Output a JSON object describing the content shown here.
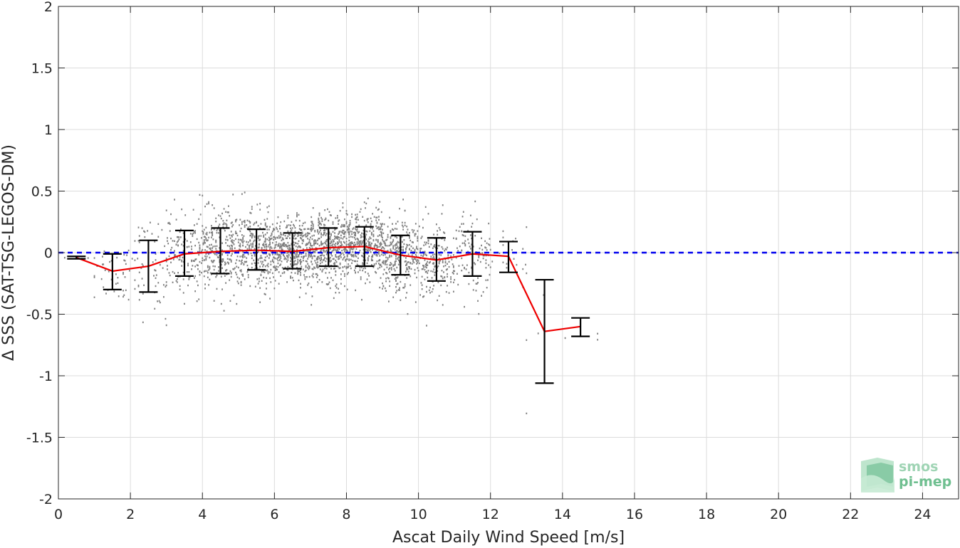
{
  "chart_data": {
    "type": "scatter",
    "xlabel": "Ascat Daily Wind Speed [m/s]",
    "ylabel": "Δ SSS (SAT-TSG-LEGOS-DM)",
    "xlim": [
      0,
      25
    ],
    "ylim": [
      -2,
      2
    ],
    "x_ticks": [
      0,
      2,
      4,
      6,
      8,
      10,
      12,
      14,
      16,
      18,
      20,
      22,
      24
    ],
    "y_ticks": [
      2,
      1.5,
      1,
      0.5,
      0,
      -0.5,
      -1,
      -1.5,
      -2
    ],
    "grid": true,
    "reference_line": {
      "y": 0,
      "style": "dashed",
      "color": "#0000ee"
    },
    "binned_mean": {
      "color": "#ee0000",
      "x": [
        0.5,
        1.5,
        2.5,
        3.5,
        4.5,
        5.5,
        6.5,
        7.5,
        8.5,
        9.5,
        10.5,
        11.5,
        12.5,
        13.5,
        14.5
      ],
      "y": [
        -0.04,
        -0.15,
        -0.11,
        -0.01,
        0.01,
        0.02,
        0.01,
        0.04,
        0.05,
        -0.02,
        -0.06,
        -0.01,
        -0.03,
        -0.64,
        -0.6
      ],
      "err_low": [
        -0.05,
        -0.3,
        -0.32,
        -0.19,
        -0.17,
        -0.14,
        -0.13,
        -0.11,
        -0.11,
        -0.18,
        -0.23,
        -0.19,
        -0.16,
        -1.06,
        -0.68
      ],
      "err_high": [
        -0.03,
        -0.01,
        0.1,
        0.18,
        0.2,
        0.19,
        0.16,
        0.2,
        0.21,
        0.14,
        0.12,
        0.17,
        0.09,
        -0.22,
        -0.53
      ]
    },
    "scatter_color": "#808080",
    "scatter_note": "dense cloud of individual matchups between ~1 and ~12.5 m/s"
  },
  "logo": {
    "line1": "smos",
    "line2": "pi-mep"
  }
}
